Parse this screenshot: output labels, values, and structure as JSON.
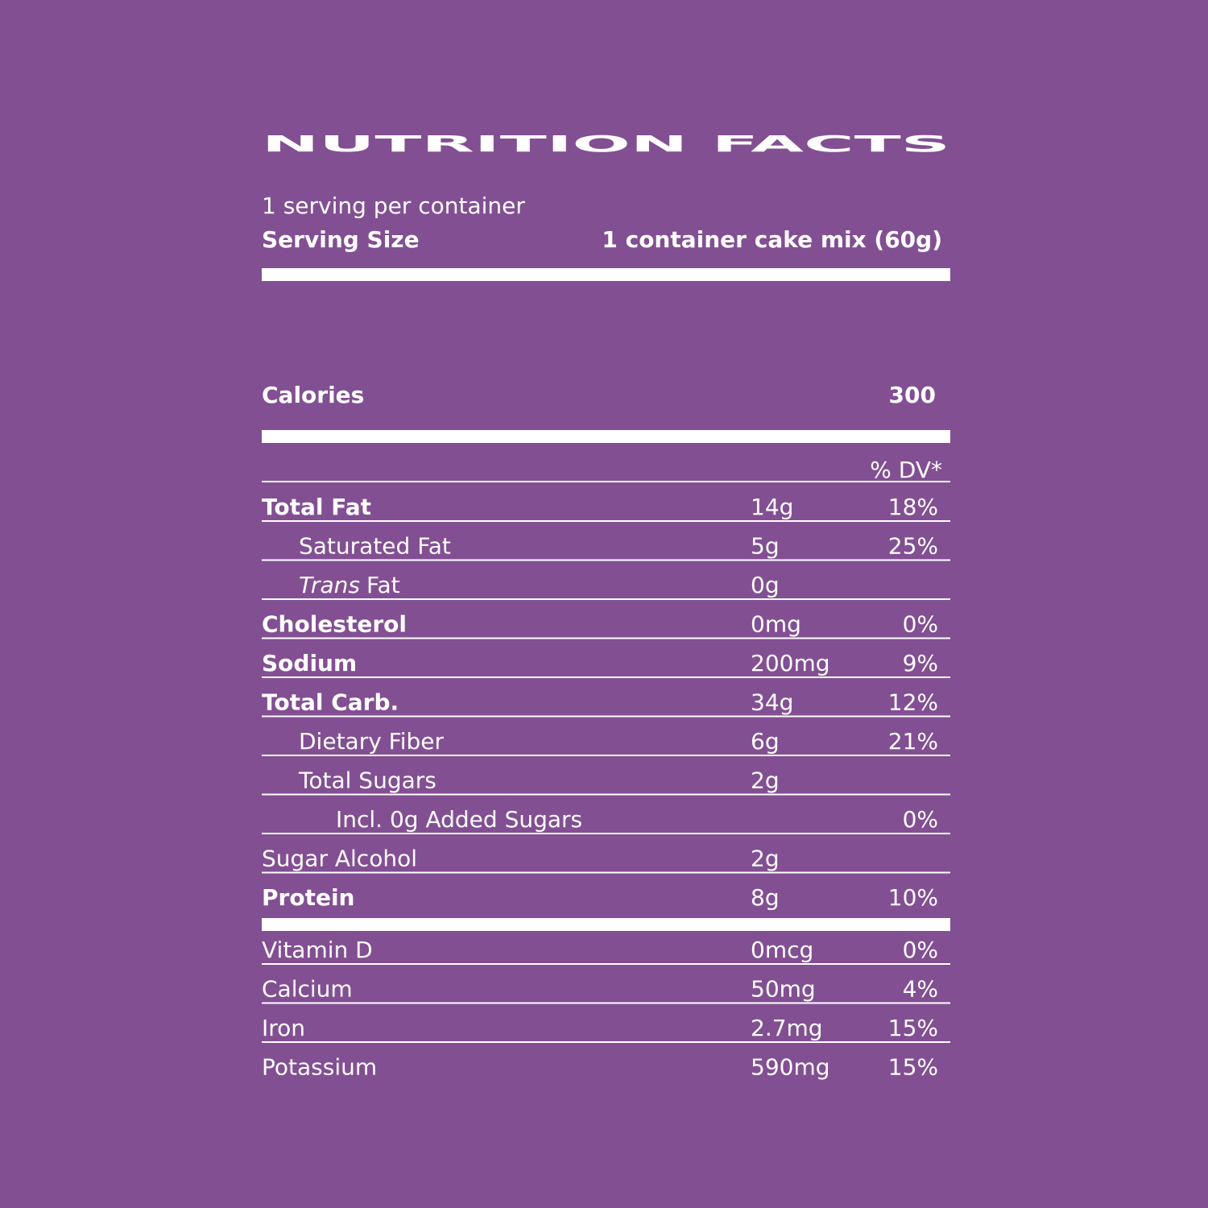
{
  "header": {
    "title": "NUTRITION  FACTS",
    "servings": "1 serving per container",
    "serving_size_label": "Serving Size",
    "serving_size": "1 container cake mix (60g)"
  },
  "calories": {
    "label": "Calories",
    "value": "300"
  },
  "dv_header": "% DV*",
  "nutrients": [
    {
      "name": "Total Fat",
      "amount": "14g",
      "dv": "18%",
      "bold": true,
      "indent": 0
    },
    {
      "name": "Saturated Fat",
      "amount": "5g",
      "dv": "25%",
      "bold": false,
      "indent": 1
    },
    {
      "name_italic": "Trans",
      "name": "Fat",
      "amount": "0g",
      "bold": false,
      "indent": 1
    },
    {
      "name": "Cholesterol",
      "amount": "0mg",
      "dv": "0%",
      "bold": true,
      "indent": 0
    },
    {
      "name": "Sodium",
      "amount": "200mg",
      "dv": "9%",
      "bold": true,
      "indent": 0
    },
    {
      "name": "Total Carb.",
      "amount": "34g",
      "dv": "12%",
      "bold": true,
      "indent": 0
    },
    {
      "name": "Dietary Fiber",
      "amount": "6g",
      "dv": "21%",
      "bold": false,
      "indent": 1
    },
    {
      "name": "Total Sugars",
      "amount": "2g",
      "bold": false,
      "indent": 1
    },
    {
      "name": "Incl. 0g Added Sugars",
      "dv": "0%",
      "bold": false,
      "indent": 2
    },
    {
      "name": "Sugar Alcohol",
      "amount": "2g",
      "bold": false,
      "indent": 0
    },
    {
      "name": "Protein",
      "amount": "8g",
      "dv": "10%",
      "bold": true,
      "indent": 0
    }
  ],
  "vitamins": [
    {
      "name": "Vitamin D",
      "amount": "0mcg",
      "dv": "0%"
    },
    {
      "name": "Calcium",
      "amount": "50mg",
      "dv": "4%"
    },
    {
      "name": "Iron",
      "amount": "2.7mg",
      "dv": "15%"
    },
    {
      "name": "Potassium",
      "amount": "590mg",
      "dv": "15%"
    }
  ]
}
